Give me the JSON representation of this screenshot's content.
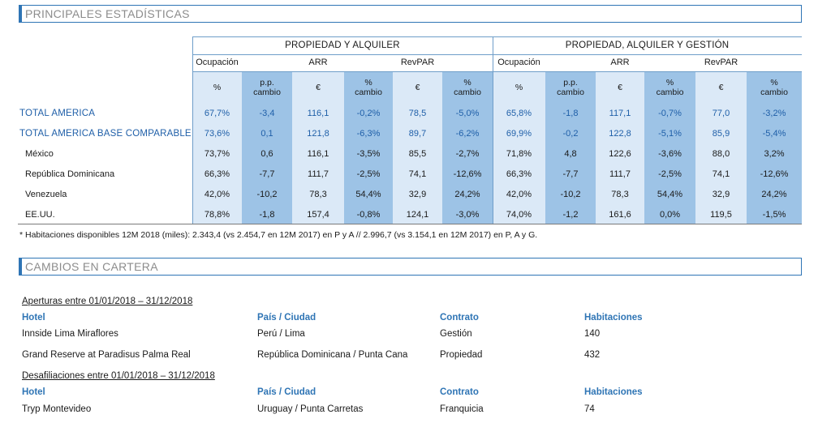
{
  "sections": {
    "stats_title": "PRINCIPALES ESTADÍSTICAS",
    "cartera_title": "CAMBIOS EN CARTERA"
  },
  "stats": {
    "group1": "PROPIEDAD Y ALQUILER",
    "group2": "PROPIEDAD, ALQUILER Y GESTIÓN",
    "metrics": [
      "Ocupación",
      "ARR",
      "RevPAR"
    ],
    "col_units": [
      "%",
      "p.p. cambio",
      "€",
      "% cambio",
      "€",
      "% cambio"
    ],
    "rows": [
      {
        "label": "TOTAL AMERICA",
        "style": "blue",
        "values": [
          "67,7%",
          "-3,4",
          "116,1",
          "-0,2%",
          "78,5",
          "-5,0%",
          "65,8%",
          "-1,8",
          "117,1",
          "-0,7%",
          "77,0",
          "-3,2%"
        ]
      },
      {
        "label": "TOTAL AMERICA BASE COMPARABLE",
        "style": "blue",
        "values": [
          "73,6%",
          "0,1",
          "121,8",
          "-6,3%",
          "89,7",
          "-6,2%",
          "69,9%",
          "-0,2",
          "122,8",
          "-5,1%",
          "85,9",
          "-5,4%"
        ]
      },
      {
        "label": "México",
        "style": "plain",
        "values": [
          "73,7%",
          "0,6",
          "116,1",
          "-3,5%",
          "85,5",
          "-2,7%",
          "71,8%",
          "4,8",
          "122,6",
          "-3,6%",
          "88,0",
          "3,2%"
        ]
      },
      {
        "label": "República Dominicana",
        "style": "plain",
        "values": [
          "66,3%",
          "-7,7",
          "111,7",
          "-2,5%",
          "74,1",
          "-12,6%",
          "66,3%",
          "-7,7",
          "111,7",
          "-2,5%",
          "74,1",
          "-12,6%"
        ]
      },
      {
        "label": "Venezuela",
        "style": "plain",
        "values": [
          "42,0%",
          "-10,2",
          "78,3",
          "54,4%",
          "32,9",
          "24,2%",
          "42,0%",
          "-10,2",
          "78,3",
          "54,4%",
          "32,9",
          "24,2%"
        ]
      },
      {
        "label": "EE.UU.",
        "style": "plain",
        "values": [
          "78,8%",
          "-1,8",
          "157,4",
          "-0,8%",
          "124,1",
          "-3,0%",
          "74,0%",
          "-1,2",
          "161,6",
          "0,0%",
          "119,5",
          "-1,5%"
        ]
      }
    ],
    "footnote": "* Habitaciones disponibles 12M 2018 (miles): 2.343,4 (vs 2.454,7 en 12M 2017) en P y A // 2.996,7 (vs 3.154,1 en 12M 2017) en P, A y G."
  },
  "cartera": {
    "aperturas_title": "Aperturas entre 01/01/2018 – 31/12/2018",
    "desafiliaciones_title": "Desafiliaciones entre 01/01/2018 – 31/12/2018",
    "headers": [
      "Hotel",
      "País / Ciudad",
      "Contrato",
      "Habitaciones"
    ],
    "aperturas": [
      {
        "hotel": "Innside Lima Miraflores",
        "pais": "Perú / Lima",
        "contrato": "Gestión",
        "habitaciones": "140"
      },
      {
        "hotel": "Grand Reserve at Paradisus Palma Real",
        "pais": "República Dominicana / Punta Cana",
        "contrato": "Propiedad",
        "habitaciones": "432"
      }
    ],
    "desafiliaciones": [
      {
        "hotel": "Tryp Montevideo",
        "pais": "Uruguay / Punta Carretas",
        "contrato": "Franquicia",
        "habitaciones": "74"
      }
    ]
  }
}
